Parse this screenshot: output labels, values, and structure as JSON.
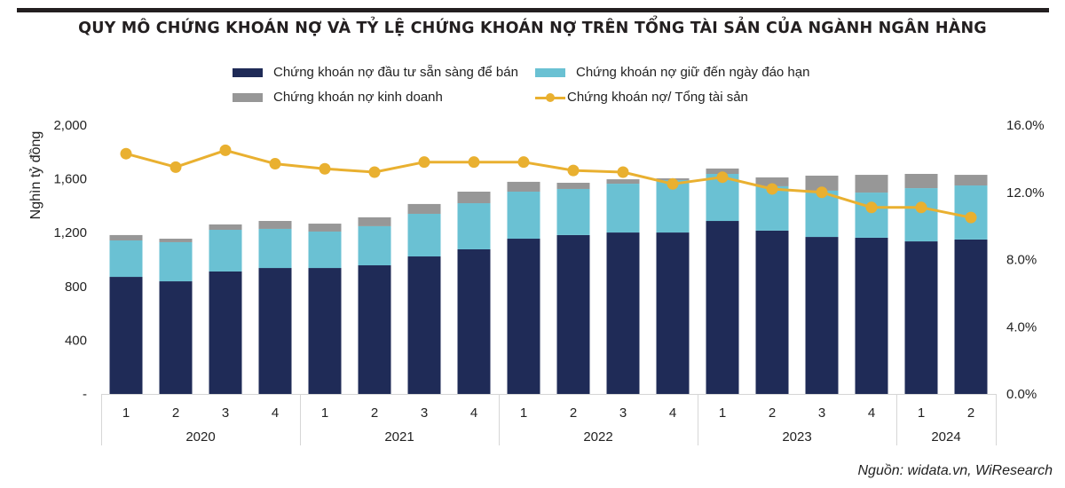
{
  "title": "QUY MÔ CHỨNG KHOÁN NỢ VÀ TỶ LỆ CHỨNG KHOÁN NỢ TRÊN TỔNG TÀI SẢN CỦA NGÀNH NGÂN HÀNG",
  "source": "Nguồn: widata.vn, WiResearch",
  "colors": {
    "afs": "#1f2b57",
    "htm": "#6ac1d3",
    "trading": "#979797",
    "ratio": "#e9b030"
  },
  "legend": [
    {
      "key": "afs",
      "label": "Chứng khoán nợ đầu tư sẵn sàng để bán"
    },
    {
      "key": "htm",
      "label": "Chứng khoán nợ giữ đến ngày đáo hạn"
    },
    {
      "key": "trading",
      "label": "Chứng khoán nợ kinh doanh"
    },
    {
      "key": "ratio",
      "label": "Chứng khoán nợ/ Tổng tài sản"
    }
  ],
  "chart_data": {
    "type": "bar",
    "stacked": true,
    "title": "QUY MÔ CHỨNG KHOÁN NỢ VÀ TỶ LỆ CHỨNG KHOÁN NỢ TRÊN TỔNG TÀI SẢN CỦA NGÀNH NGÂN HÀNG",
    "ylabel": "Nghìn tỷ đồng",
    "ylim": [
      0,
      2000
    ],
    "yticks": [
      0,
      400,
      800,
      1200,
      1600,
      2000
    ],
    "ytick_labels": [
      "-",
      "400",
      "800",
      "1,200",
      "1,600",
      "2,000"
    ],
    "y2lim": [
      0,
      16
    ],
    "y2ticks_labels": [
      "0.0%",
      "4.0%",
      "8.0%",
      "12.0%",
      "16.0%"
    ],
    "y2ticks": [
      0,
      4,
      8,
      12,
      16
    ],
    "grid": false,
    "legend_position": "top",
    "categories": [
      "1",
      "2",
      "3",
      "4",
      "1",
      "2",
      "3",
      "4",
      "1",
      "2",
      "3",
      "4",
      "1",
      "2",
      "3",
      "4",
      "1",
      "2"
    ],
    "groups": [
      {
        "label": "2020",
        "count": 4
      },
      {
        "label": "2021",
        "count": 4
      },
      {
        "label": "2022",
        "count": 4
      },
      {
        "label": "2023",
        "count": 4
      },
      {
        "label": "2024",
        "count": 2
      }
    ],
    "series": [
      {
        "name": "Chứng khoán nợ đầu tư sẵn sàng để bán",
        "type": "bar",
        "axis": "left",
        "values": [
          871,
          838,
          911,
          937,
          937,
          957,
          1023,
          1076,
          1155,
          1182,
          1201,
          1201,
          1287,
          1215,
          1168,
          1162,
          1135,
          1149
        ]
      },
      {
        "name": "Chứng khoán nợ giữ đến ngày đáo hạn",
        "type": "bar",
        "axis": "left",
        "values": [
          271,
          291,
          310,
          291,
          271,
          291,
          317,
          343,
          350,
          343,
          363,
          390,
          350,
          330,
          344,
          336,
          396,
          402
        ]
      },
      {
        "name": "Chứng khoán nợ kinh doanh",
        "type": "bar",
        "axis": "left",
        "values": [
          40,
          26,
          40,
          59,
          59,
          66,
          73,
          86,
          73,
          46,
          33,
          13,
          40,
          66,
          112,
          132,
          106,
          79
        ]
      },
      {
        "name": "Chứng khoán nợ/ Tổng tài sản",
        "type": "line",
        "axis": "right",
        "unit": "%",
        "values": [
          14.3,
          13.5,
          14.5,
          13.7,
          13.4,
          13.2,
          13.8,
          13.8,
          13.8,
          13.3,
          13.2,
          12.5,
          12.9,
          12.2,
          12.0,
          11.1,
          11.1,
          10.5
        ]
      }
    ]
  }
}
